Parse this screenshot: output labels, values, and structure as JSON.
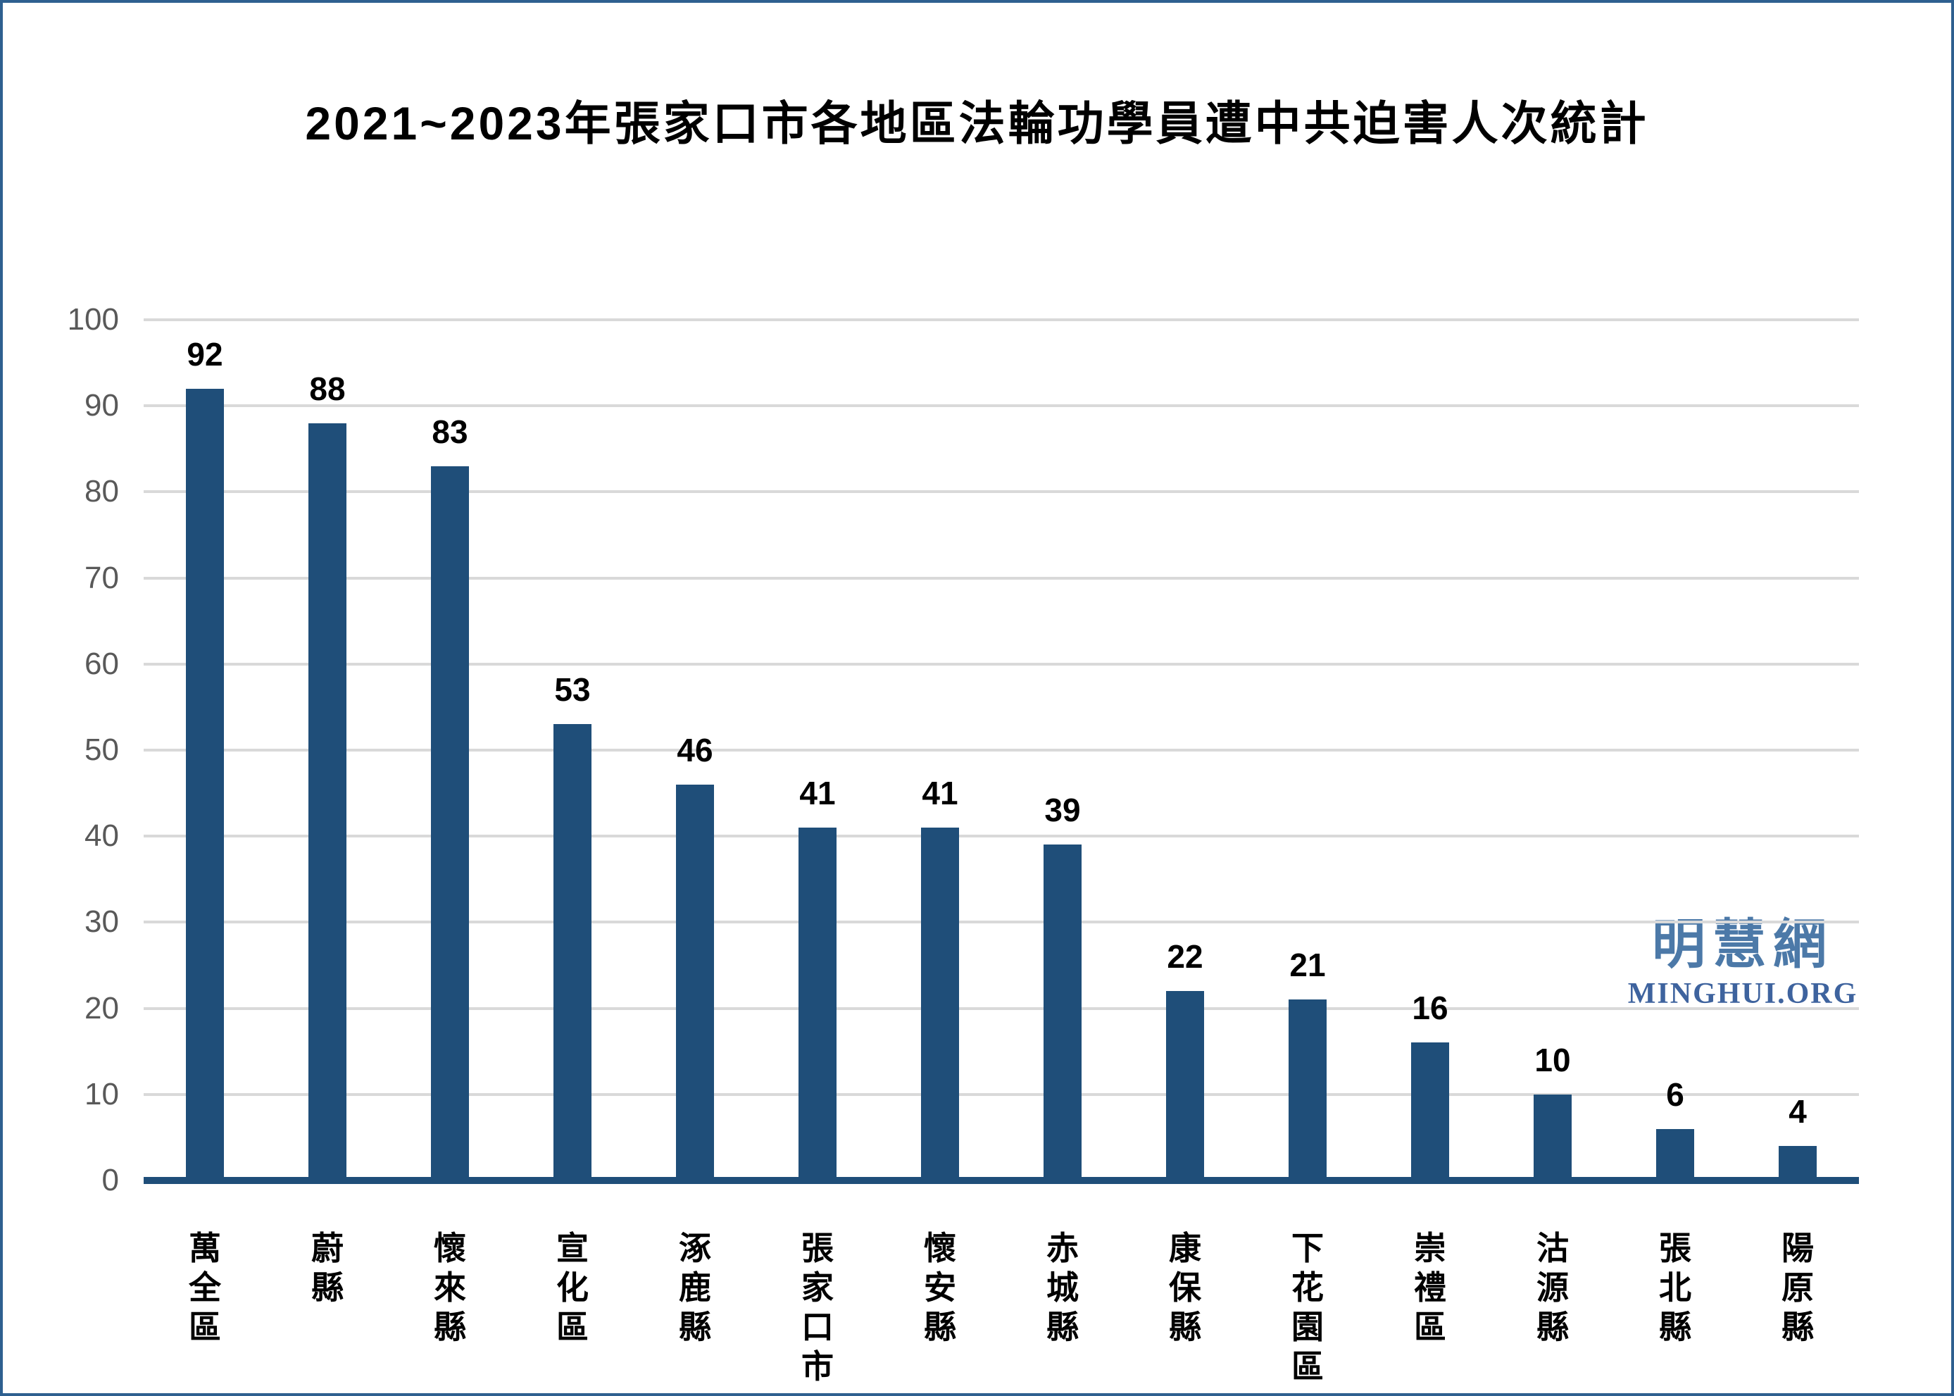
{
  "title": "2021~2023年張家口市各地區法輪功學員遭中共迫害人次統計",
  "watermark": {
    "zh": "明慧網",
    "en": "MINGHUI.ORG"
  },
  "colors": {
    "bar": "#1f4e79",
    "axis_line": "#1f4e79",
    "gridline": "#d9d9d9",
    "tick_text": "#595959",
    "frame_border": "#2e6090",
    "watermark_zh": "#4c79a8",
    "watermark_en": "#3e639e"
  },
  "chart_data": {
    "type": "bar",
    "title": "2021~2023年張家口市各地區法輪功學員遭中共迫害人次統計",
    "categories": [
      "萬全區",
      "蔚縣",
      "懷來縣",
      "宣化區",
      "涿鹿縣",
      "張家口市",
      "懷安縣",
      "赤城縣",
      "康保縣",
      "下花園區",
      "崇禮區",
      "沽源縣",
      "張北縣",
      "陽原縣"
    ],
    "values": [
      92,
      88,
      83,
      53,
      46,
      41,
      41,
      39,
      22,
      21,
      16,
      10,
      6,
      4
    ],
    "xlabel": "",
    "ylabel": "",
    "ylim": [
      0,
      100
    ],
    "ytick_step": 10,
    "yticks": [
      0,
      10,
      20,
      30,
      40,
      50,
      60,
      70,
      80,
      90,
      100
    ],
    "grid": true,
    "legend": false,
    "data_labels": true,
    "category_text_orientation": "vertical"
  }
}
